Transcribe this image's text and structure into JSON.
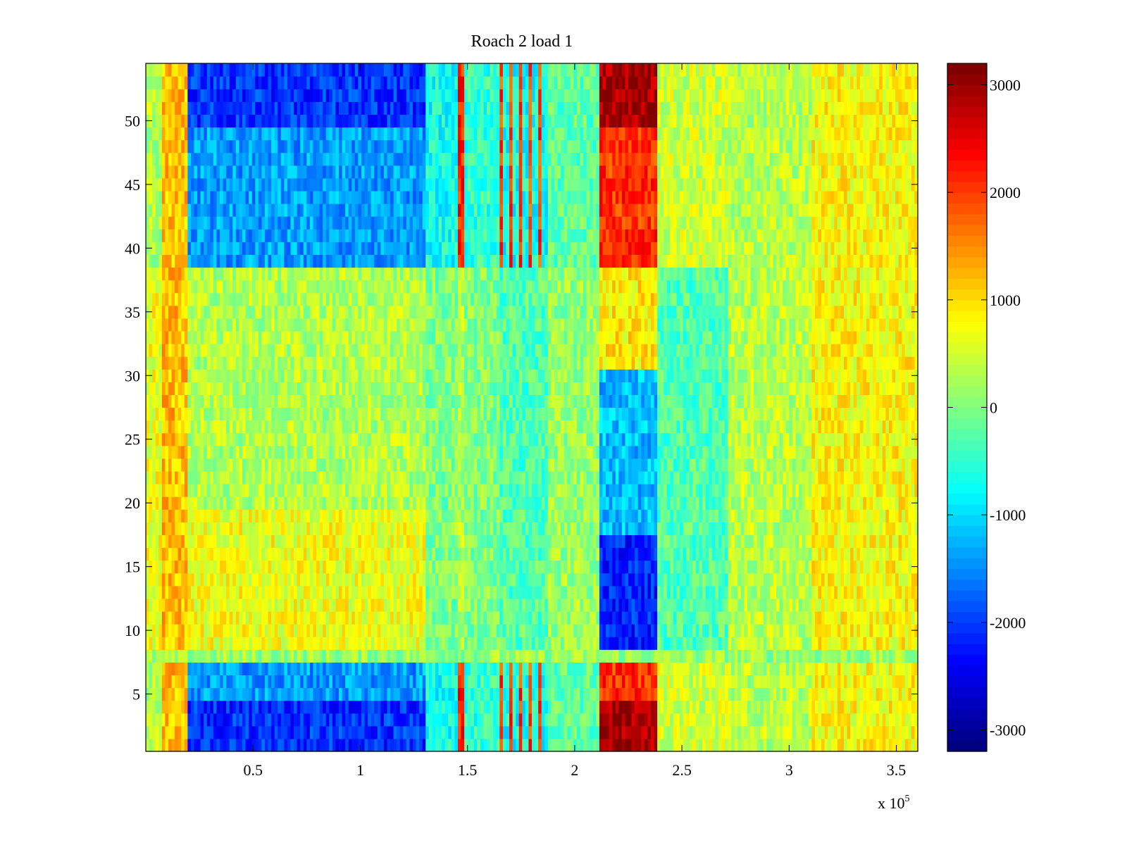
{
  "chart_data": {
    "type": "heatmap",
    "title": "Roach 2 load 1",
    "xlabel": "",
    "ylabel": "",
    "x_multiplier_label": "x 10",
    "x_multiplier_exponent": "5",
    "xlim": [
      0,
      3.6
    ],
    "ylim": [
      0.5,
      54.5
    ],
    "x_ticks": [
      0.5,
      1,
      1.5,
      2,
      2.5,
      3,
      3.5
    ],
    "x_tick_labels": [
      "0.5",
      "1",
      "1.5",
      "2",
      "2.5",
      "3",
      "3.5"
    ],
    "y_ticks": [
      5,
      10,
      15,
      20,
      25,
      30,
      35,
      40,
      45,
      50
    ],
    "y_tick_labels": [
      "5",
      "10",
      "15",
      "20",
      "25",
      "30",
      "35",
      "40",
      "45",
      "50"
    ],
    "colorbar": {
      "colormap": "jet",
      "clim": [
        -3200,
        3200
      ],
      "ticks": [
        3000,
        2000,
        1000,
        0,
        -1000,
        -2000,
        -3000
      ],
      "tick_labels": [
        "3000",
        "2000",
        "1000",
        "0",
        "-1000",
        "-2000",
        "-3000"
      ]
    },
    "rows": 54,
    "approx_structure": [
      {
        "x_range": [
          0.08,
          0.19
        ],
        "rows": "1-54",
        "value_approx": 1200
      },
      {
        "x_range": [
          0.2,
          1.3
        ],
        "rows": "1-7 and 39-54",
        "value_approx": -1500
      },
      {
        "x_range": [
          0.2,
          1.3
        ],
        "rows": "9-38",
        "value_approx": 300
      },
      {
        "x_range": [
          1.46,
          1.49
        ],
        "rows": "1-7 and 39-54",
        "value_approx": 2200
      },
      {
        "x_range": [
          1.65,
          1.88
        ],
        "rows": "1-7 and 39-54",
        "value_approx": 1500
      },
      {
        "x_range": [
          2.11,
          2.39
        ],
        "rows": "1-7 and 39-54",
        "value_approx": 2800
      },
      {
        "x_range": [
          2.11,
          2.39
        ],
        "rows": "9-30",
        "value_approx": -1800
      },
      {
        "x_range": [
          2.4,
          3.6
        ],
        "rows": "1-54",
        "value_approx": 400
      }
    ]
  }
}
